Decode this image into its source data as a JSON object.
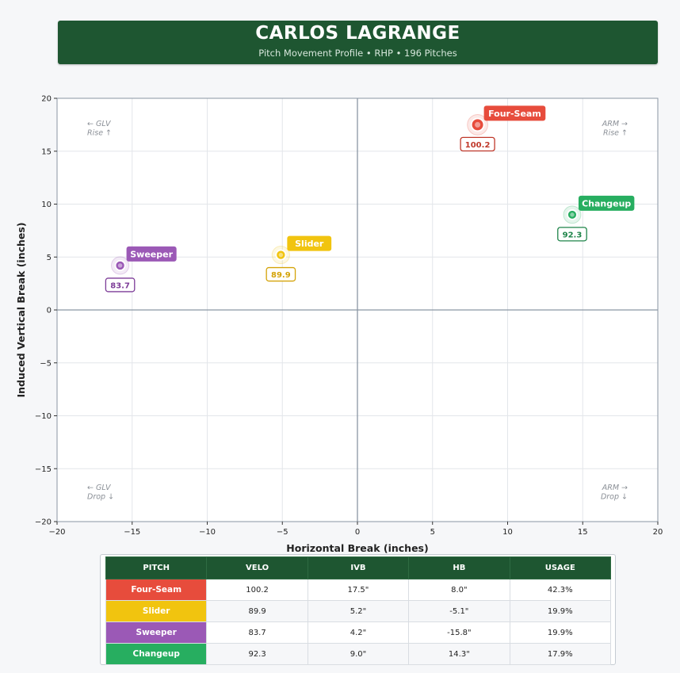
{
  "header": {
    "title": "CARLOS LAGRANGE",
    "subtitle": "Pitch Movement Profile  •  RHP  •  196 Pitches"
  },
  "chart_data": {
    "type": "scatter",
    "xlabel": "Horizontal Break (inches)",
    "ylabel": "Induced Vertical Break (inches)",
    "xlim": [
      -20,
      20
    ],
    "ylim": [
      -20,
      20
    ],
    "xticks": [
      -20,
      -15,
      -10,
      -5,
      0,
      5,
      10,
      15,
      20
    ],
    "yticks": [
      -20,
      -15,
      -10,
      -5,
      0,
      5,
      10,
      15,
      20
    ],
    "grid": true,
    "quadrant_labels": {
      "top_left": [
        "← GLV",
        "Rise ↑"
      ],
      "top_right": [
        "ARM →",
        "Rise ↑"
      ],
      "bottom_left": [
        "← GLV",
        "Drop ↓"
      ],
      "bottom_right": [
        "ARM →",
        "Drop ↓"
      ]
    },
    "points": [
      {
        "name": "Four-Seam",
        "x": 8.0,
        "y": 17.5,
        "velo": "100.2",
        "usage": 42.3,
        "color": "#e74c3c",
        "velo_color": "#c0392b"
      },
      {
        "name": "Slider",
        "x": -5.1,
        "y": 5.2,
        "velo": "89.9",
        "usage": 19.9,
        "color": "#f1c40f",
        "velo_color": "#d4a308"
      },
      {
        "name": "Sweeper",
        "x": -15.8,
        "y": 4.2,
        "velo": "83.7",
        "usage": 19.9,
        "color": "#9b59b6",
        "velo_color": "#7d3c98"
      },
      {
        "name": "Changeup",
        "x": 14.3,
        "y": 9.0,
        "velo": "92.3",
        "usage": 17.9,
        "color": "#27ae60",
        "velo_color": "#1e8449"
      }
    ]
  },
  "table": {
    "headers": [
      "PITCH",
      "VELO",
      "IVB",
      "HB",
      "USAGE"
    ],
    "rows": [
      {
        "pitch": "Four-Seam",
        "velo": "100.2",
        "ivb": "17.5\"",
        "hb": "8.0\"",
        "usage": "42.3%",
        "color": "#e74c3c"
      },
      {
        "pitch": "Slider",
        "velo": "89.9",
        "ivb": "5.2\"",
        "hb": "-5.1\"",
        "usage": "19.9%",
        "color": "#f1c40f"
      },
      {
        "pitch": "Sweeper",
        "velo": "83.7",
        "ivb": "4.2\"",
        "hb": "-15.8\"",
        "usage": "19.9%",
        "color": "#9b59b6"
      },
      {
        "pitch": "Changeup",
        "velo": "92.3",
        "ivb": "9.0\"",
        "hb": "14.3\"",
        "usage": "17.9%",
        "color": "#27ae60"
      }
    ]
  }
}
